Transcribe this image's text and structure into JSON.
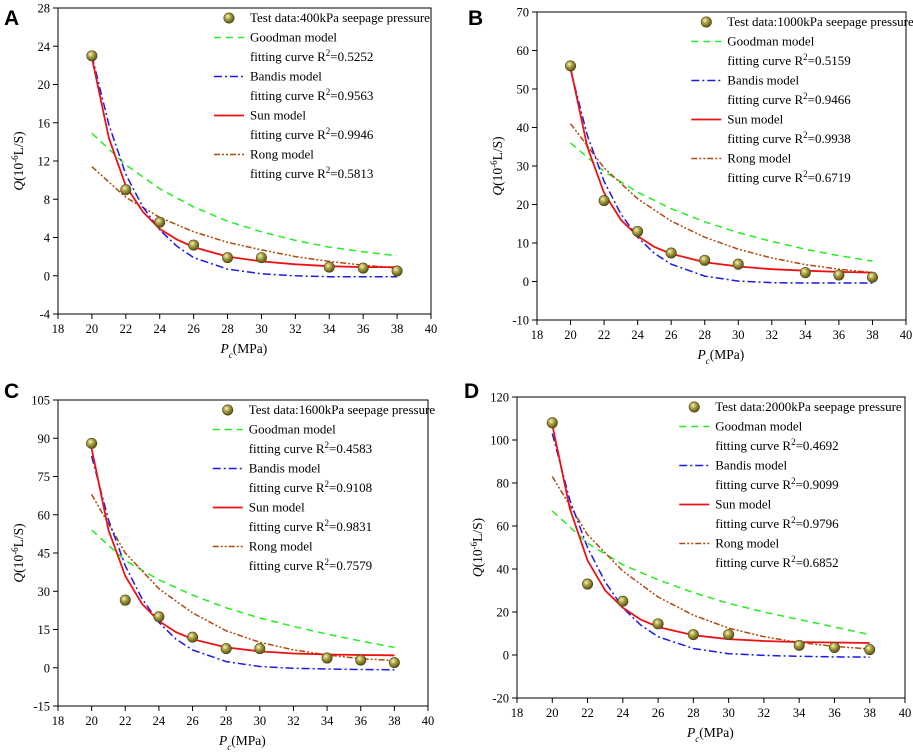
{
  "figure": {
    "legend_labels": {
      "goodman": "Goodman model",
      "bandis": "Bandis model",
      "sun": "Sun model",
      "rong": "Rong model"
    },
    "fit_prefix": "fitting curve R",
    "fit_superscript": "2",
    "y_title": {
      "main": "Q",
      "open": "(10",
      "exp": "-6",
      "close": "L/S)"
    },
    "x_title": {
      "main": "P",
      "sub": "c",
      "rest": "(MPa)"
    },
    "colors": {
      "goodman": "#22ee22",
      "bandis": "#1a1aee",
      "sun": "#ee1111",
      "rong": "#b04a0e",
      "marker": "#a8a040"
    }
  },
  "chart_data": [
    {
      "panel": "A",
      "type": "scatter",
      "test_label": "Test data:400kPa seepage pressure",
      "xlabel": "Pc(MPa)",
      "ylabel": "Q(10-6L/S)",
      "xlim": [
        18,
        40
      ],
      "ylim": [
        -4,
        28
      ],
      "xticks": [
        18,
        20,
        22,
        24,
        26,
        28,
        30,
        32,
        34,
        36,
        38,
        40
      ],
      "yticks": [
        -4,
        0,
        4,
        8,
        12,
        16,
        20,
        24,
        28
      ],
      "test_data": {
        "x": [
          20,
          22,
          24,
          26,
          28,
          30,
          34,
          36,
          38
        ],
        "y": [
          23.0,
          9.0,
          5.6,
          3.2,
          1.9,
          1.9,
          0.9,
          0.8,
          0.5
        ]
      },
      "series": [
        {
          "key": "goodman",
          "name": "Goodman model",
          "r2": "0.5252",
          "x": [
            20,
            22,
            24,
            26,
            28,
            30,
            32,
            34,
            36,
            38
          ],
          "y": [
            14.9,
            11.6,
            9.1,
            7.2,
            5.7,
            4.6,
            3.7,
            3.0,
            2.5,
            2.1
          ]
        },
        {
          "key": "bandis",
          "name": "Bandis model",
          "r2": "0.9563",
          "x": [
            20,
            21,
            22,
            23,
            24,
            25,
            26,
            28,
            30,
            32,
            34,
            36,
            38
          ],
          "y": [
            23.0,
            15.8,
            10.6,
            7.2,
            4.8,
            3.1,
            1.9,
            0.7,
            0.2,
            0.0,
            -0.1,
            -0.1,
            -0.1
          ]
        },
        {
          "key": "sun",
          "name": "Sun model",
          "r2": "0.9946",
          "x": [
            20,
            21,
            22,
            23,
            24,
            25,
            26,
            28,
            30,
            32,
            34,
            36,
            38
          ],
          "y": [
            22.8,
            14.4,
            9.4,
            6.7,
            4.9,
            3.8,
            3.0,
            2.0,
            1.5,
            1.2,
            1.0,
            0.9,
            0.9
          ]
        },
        {
          "key": "rong",
          "name": "Rong model",
          "r2": "0.5813",
          "x": [
            20,
            22,
            24,
            26,
            28,
            30,
            32,
            34,
            36,
            38
          ],
          "y": [
            11.4,
            8.2,
            6.1,
            4.6,
            3.5,
            2.7,
            2.0,
            1.5,
            1.1,
            0.8
          ]
        }
      ]
    },
    {
      "panel": "B",
      "type": "scatter",
      "test_label": "Test data:1000kPa seepage pressure",
      "xlabel": "Pc(MPa)",
      "ylabel": "Q(10-6L/S)",
      "xlim": [
        18,
        40
      ],
      "ylim": [
        -10,
        70
      ],
      "xticks": [
        18,
        20,
        22,
        24,
        26,
        28,
        30,
        32,
        34,
        36,
        38,
        40
      ],
      "yticks": [
        -10,
        0,
        10,
        20,
        30,
        40,
        50,
        60,
        70
      ],
      "test_data": {
        "x": [
          20,
          22,
          24,
          26,
          28,
          30,
          34,
          36,
          38
        ],
        "y": [
          56.0,
          21.0,
          13.0,
          7.4,
          5.5,
          4.5,
          2.3,
          1.7,
          1.1
        ]
      },
      "series": [
        {
          "key": "goodman",
          "name": "Goodman model",
          "r2": "0.5159",
          "x": [
            20,
            22,
            24,
            26,
            28,
            30,
            32,
            34,
            36,
            38
          ],
          "y": [
            36.0,
            28.6,
            23.2,
            18.9,
            15.5,
            12.7,
            10.4,
            8.4,
            6.7,
            5.3
          ]
        },
        {
          "key": "bandis",
          "name": "Bandis model",
          "r2": "0.9466",
          "x": [
            20,
            21,
            22,
            23,
            24,
            25,
            26,
            28,
            30,
            32,
            34,
            36,
            38
          ],
          "y": [
            55.0,
            38.0,
            26.0,
            17.5,
            11.5,
            7.3,
            4.5,
            1.4,
            0.1,
            -0.3,
            -0.4,
            -0.4,
            -0.4
          ]
        },
        {
          "key": "sun",
          "name": "Sun model",
          "r2": "0.9938",
          "x": [
            20,
            21,
            22,
            23,
            24,
            25,
            26,
            28,
            30,
            32,
            34,
            36,
            38
          ],
          "y": [
            55.5,
            35.0,
            23.0,
            16.0,
            11.8,
            9.0,
            7.2,
            5.0,
            3.9,
            3.2,
            2.8,
            2.5,
            2.3
          ]
        },
        {
          "key": "rong",
          "name": "Rong model",
          "r2": "0.6719",
          "x": [
            20,
            22,
            24,
            26,
            28,
            30,
            32,
            34,
            36,
            38
          ],
          "y": [
            41.0,
            29.5,
            21.5,
            15.7,
            11.5,
            8.4,
            6.1,
            4.4,
            3.2,
            2.3
          ]
        }
      ]
    },
    {
      "panel": "C",
      "type": "scatter",
      "test_label": "Test data:1600kPa seepage pressure",
      "xlabel": "Pc(MPa)",
      "ylabel": "Q(10-6L/S)",
      "xlim": [
        18,
        40
      ],
      "ylim": [
        -15,
        105
      ],
      "xticks": [
        18,
        20,
        22,
        24,
        26,
        28,
        30,
        32,
        34,
        36,
        38,
        40
      ],
      "yticks": [
        -15,
        0,
        15,
        30,
        45,
        60,
        75,
        90,
        105
      ],
      "test_data": {
        "x": [
          20,
          22,
          24,
          26,
          28,
          30,
          34,
          36,
          38
        ],
        "y": [
          88.0,
          26.5,
          20.0,
          12.0,
          7.5,
          7.5,
          3.8,
          3.0,
          2.0
        ]
      },
      "series": [
        {
          "key": "goodman",
          "name": "Goodman model",
          "r2": "0.4583",
          "x": [
            20,
            22,
            24,
            26,
            28,
            30,
            32,
            34,
            36,
            38
          ],
          "y": [
            54.0,
            42.0,
            34.5,
            28.5,
            23.5,
            19.5,
            16.2,
            13.2,
            10.5,
            8.0
          ]
        },
        {
          "key": "bandis",
          "name": "Bandis model",
          "r2": "0.9108",
          "x": [
            20,
            21,
            22,
            23,
            24,
            25,
            26,
            28,
            30,
            32,
            34,
            36,
            38
          ],
          "y": [
            83.0,
            58.0,
            40.0,
            27.0,
            17.8,
            11.3,
            7.0,
            2.4,
            0.5,
            -0.2,
            -0.5,
            -0.7,
            -0.8
          ]
        },
        {
          "key": "sun",
          "name": "Sun model",
          "r2": "0.9831",
          "x": [
            20,
            21,
            22,
            23,
            24,
            25,
            26,
            28,
            30,
            32,
            34,
            36,
            38
          ],
          "y": [
            86.0,
            54.0,
            36.0,
            25.0,
            18.3,
            14.0,
            11.2,
            8.0,
            6.4,
            5.6,
            5.2,
            5.0,
            4.9
          ]
        },
        {
          "key": "rong",
          "name": "Rong model",
          "r2": "0.7579",
          "x": [
            20,
            22,
            24,
            26,
            28,
            30,
            32,
            34,
            36,
            38
          ],
          "y": [
            68.0,
            45.0,
            31.0,
            21.5,
            14.5,
            10.0,
            7.0,
            5.0,
            3.6,
            2.8
          ]
        }
      ]
    },
    {
      "panel": "D",
      "type": "scatter",
      "test_label": "Test data:2000kPa seepage pressure",
      "xlabel": "Pc(MPa)",
      "ylabel": "Q(10-6L/S)",
      "xlim": [
        18,
        40
      ],
      "ylim": [
        -20,
        120
      ],
      "xticks": [
        18,
        20,
        22,
        24,
        26,
        28,
        30,
        32,
        34,
        36,
        38,
        40
      ],
      "yticks": [
        -20,
        0,
        20,
        40,
        60,
        80,
        100,
        120
      ],
      "test_data": {
        "x": [
          20,
          22,
          24,
          26,
          28,
          30,
          34,
          36,
          38
        ],
        "y": [
          108.0,
          33.0,
          25.0,
          14.5,
          9.5,
          9.5,
          4.5,
          3.5,
          2.5
        ]
      },
      "series": [
        {
          "key": "goodman",
          "name": "Goodman model",
          "r2": "0.4692",
          "x": [
            20,
            22,
            24,
            26,
            28,
            30,
            32,
            34,
            36,
            38
          ],
          "y": [
            67.0,
            52.0,
            42.0,
            35.0,
            29.0,
            24.0,
            20.0,
            16.5,
            13.0,
            9.5
          ]
        },
        {
          "key": "bandis",
          "name": "Bandis model",
          "r2": "0.9099",
          "x": [
            20,
            21,
            22,
            23,
            24,
            25,
            26,
            28,
            30,
            32,
            34,
            36,
            38
          ],
          "y": [
            103.0,
            72.0,
            50.0,
            34.0,
            22.0,
            14.0,
            8.5,
            3.0,
            0.6,
            -0.2,
            -0.6,
            -0.9,
            -1.0
          ]
        },
        {
          "key": "sun",
          "name": "Sun model",
          "r2": "0.9796",
          "x": [
            20,
            21,
            22,
            23,
            24,
            25,
            26,
            28,
            30,
            32,
            34,
            36,
            38
          ],
          "y": [
            107.0,
            68.0,
            44.0,
            30.0,
            22.0,
            16.5,
            13.0,
            9.2,
            7.4,
            6.5,
            6.0,
            5.8,
            5.6
          ]
        },
        {
          "key": "rong",
          "name": "Rong model",
          "r2": "0.6852",
          "x": [
            20,
            22,
            24,
            26,
            28,
            30,
            32,
            34,
            36,
            38
          ],
          "y": [
            83.0,
            56.0,
            39.0,
            27.0,
            18.5,
            12.5,
            8.5,
            5.8,
            4.0,
            2.8
          ]
        }
      ]
    }
  ]
}
